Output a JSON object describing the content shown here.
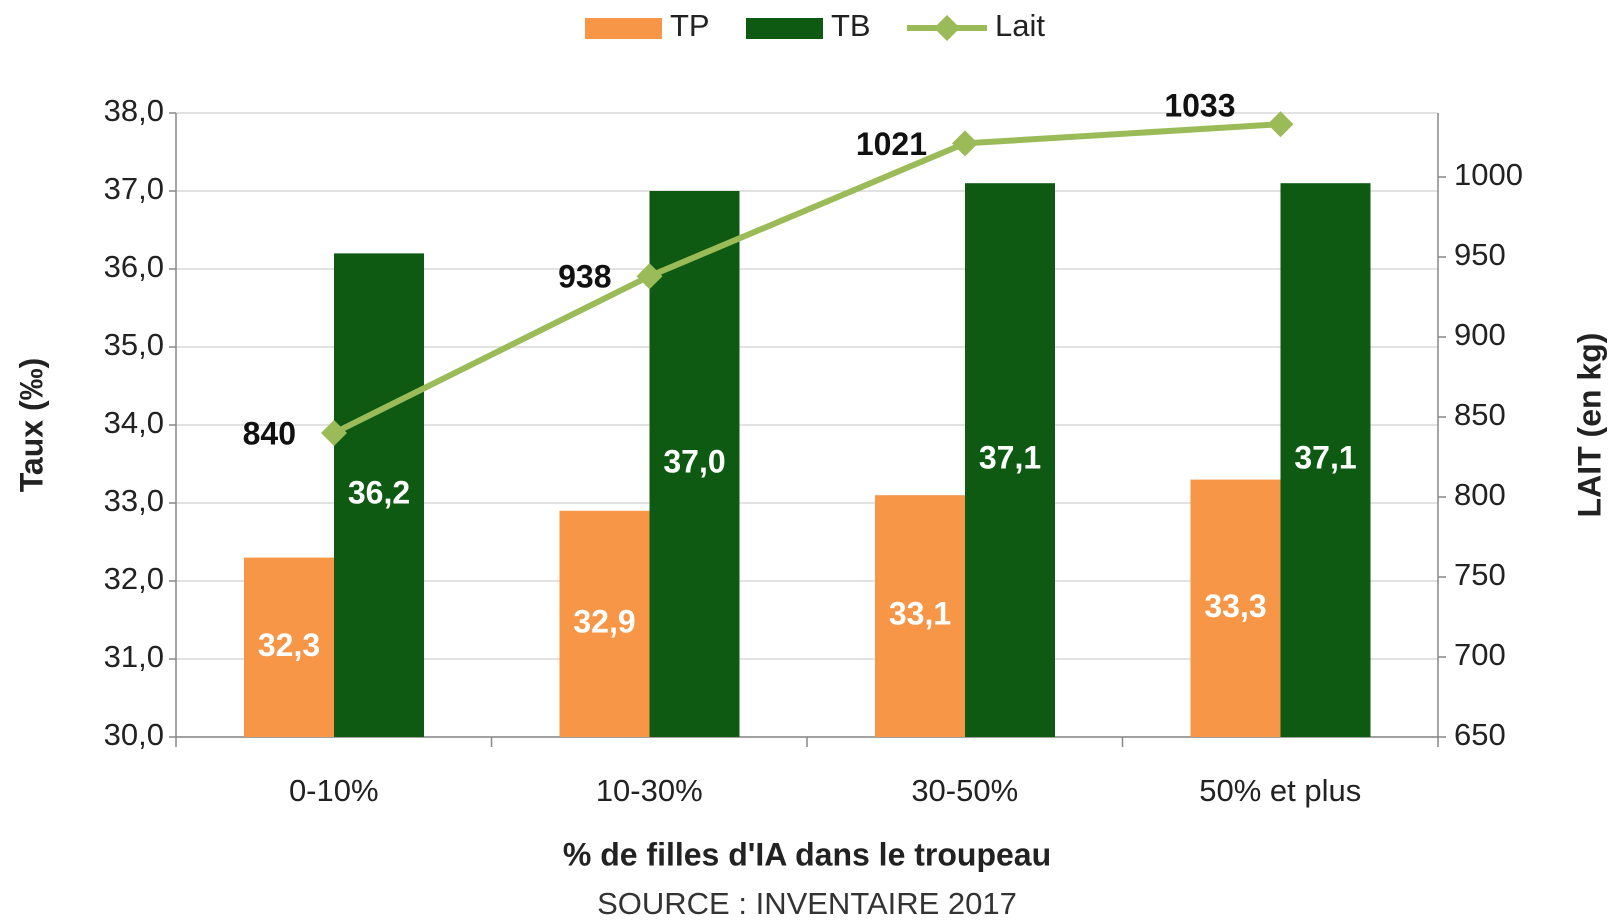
{
  "chart_data": {
    "type": "bar",
    "categories": [
      "0-10%",
      "10-30%",
      "30-50%",
      "50% et plus"
    ],
    "series": [
      {
        "name": "TP",
        "color": "#f79646",
        "values": [
          32.3,
          32.9,
          33.1,
          33.3
        ],
        "value_labels": [
          "32,3",
          "32,9",
          "33,1",
          "33,3"
        ]
      },
      {
        "name": "TB",
        "color": "#0e5a12",
        "values": [
          36.2,
          37.0,
          37.1,
          37.1
        ],
        "value_labels": [
          "36,2",
          "37,0",
          "37,1",
          "37,1"
        ]
      },
      {
        "name": "Lait",
        "type": "line",
        "axis": "y2",
        "color": "#9bbb59",
        "values": [
          840,
          938,
          1021,
          1033
        ]
      }
    ],
    "xlabel": "% de filles d'IA dans le troupeau",
    "ylabel": "Taux (‰)",
    "y2label": "LAIT (en kg)",
    "note": "SOURCE : INVENTAIRE 2017",
    "ylim": [
      30,
      38
    ],
    "yticks": [
      {
        "value": 30,
        "label": "30,0"
      },
      {
        "value": 31,
        "label": "31,0"
      },
      {
        "value": 32,
        "label": "32,0"
      },
      {
        "value": 33,
        "label": "33,0"
      },
      {
        "value": 34,
        "label": "34,0"
      },
      {
        "value": 35,
        "label": "35,0"
      },
      {
        "value": 36,
        "label": "36,0"
      },
      {
        "value": 37,
        "label": "37,0"
      },
      {
        "value": 38,
        "label": "38,0"
      }
    ],
    "y2lim": [
      650,
      1040
    ],
    "y2ticks": [
      650,
      700,
      750,
      800,
      850,
      900,
      950,
      1000
    ],
    "grid": true,
    "legend": "top"
  }
}
